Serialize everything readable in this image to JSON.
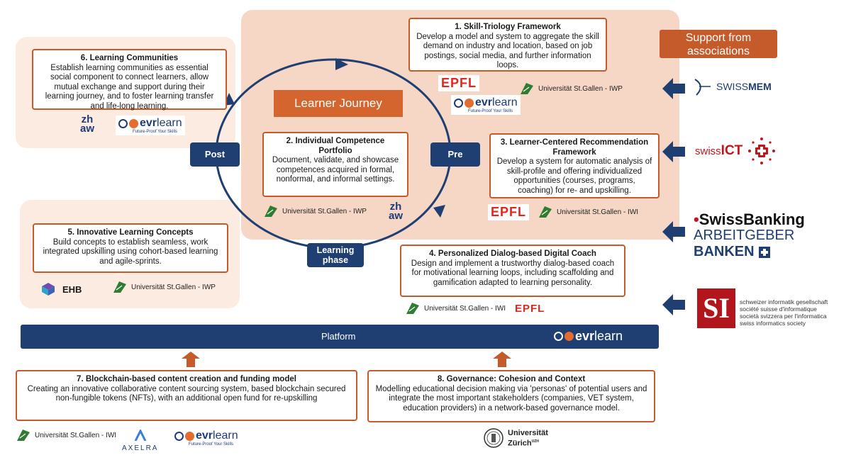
{
  "learner_journey": {
    "title": "Learner Journey",
    "post": "Post",
    "pre": "Pre",
    "phase": "Learning phase"
  },
  "support": {
    "title": "Support from associations"
  },
  "boxes": {
    "b1": {
      "title": "1. Skill-Triology Framework",
      "desc": "Develop a model and system to aggregate the skill demand on industry and location, based on job postings, social media, and further information loops."
    },
    "b2": {
      "title": "2. Individual Competence Portfolio",
      "desc": "Document, validate, and showcase competences acquired in formal, nonformal, and informal settings."
    },
    "b3": {
      "title": "3. Learner-Centered Recommendation Framework",
      "desc": "Develop a system for automatic analysis of skill-profile and offering individualized opportunities (courses, programs, coaching) for re- and upskilling."
    },
    "b4": {
      "title": "4. Personalized Dialog-based Digital Coach",
      "desc": "Design and implement  a trustworthy dialog-based coach for motivational learning loops, including scaffolding and gamification adapted to learning personality."
    },
    "b5": {
      "title": "5. Innovative Learning Concepts",
      "desc": "Build concepts to establish seamless, work integrated upskilling using cohort-based learning and agile-sprints."
    },
    "b6": {
      "title": "6. Learning Communities",
      "desc": "Establish learning communities as essential social component to connect learners, allow mutual exchange and support during their learning journey, and to foster learning transfer and life-long learning."
    },
    "b7": {
      "title": "7. Blockchain-based content creation and funding model",
      "desc": "Creating an innovative collaborative content sourcing system, based blockchain secured non-fungible tokens (NFTs), with an additional open fund for re-upskilling"
    },
    "b8": {
      "title": "8. Governance: Cohesion and Context",
      "desc": "Modelling  educational decision making via 'personas' of potential users and integrate the most important stakeholders (companies, VET system, education providers) in a network-based governance model."
    }
  },
  "platform": {
    "label": "Platform"
  },
  "logos": {
    "unisg_iwp": "Universität St.Gallen - IWP",
    "unisg_iwi": "Universität St.Gallen - IWI",
    "epfl": "EPFL",
    "zhaw_top": "zh",
    "zhaw_bottom": "aw",
    "evr_a": "evr",
    "evr_b": "learn",
    "evr_tag": "Future-Proof Your Skills",
    "ehb": "EHB",
    "axelra": "AXELRA",
    "uzh_1": "Universität",
    "uzh_2": "Zürich",
    "uzh_sup": "UZH",
    "swissmem_a": "SWISS",
    "swissmem_b": "MEM",
    "swissict_a": "swiss",
    "swissict_b": "ICT",
    "swissbanking": "SwissBanking",
    "arbeitgeber": "ARBEITGEBER",
    "banken": "BANKEN",
    "si_1": "schweizer informatik gesellschaft",
    "si_2": "société suisse d'informatique",
    "si_3": "società svizzera per l'informatica",
    "si_4": "swiss informatics society"
  },
  "colors": {
    "accent": "#c55a2b",
    "navy": "#1f3f73",
    "panel": "#f6d9c8",
    "panel_light": "#fbece3"
  }
}
